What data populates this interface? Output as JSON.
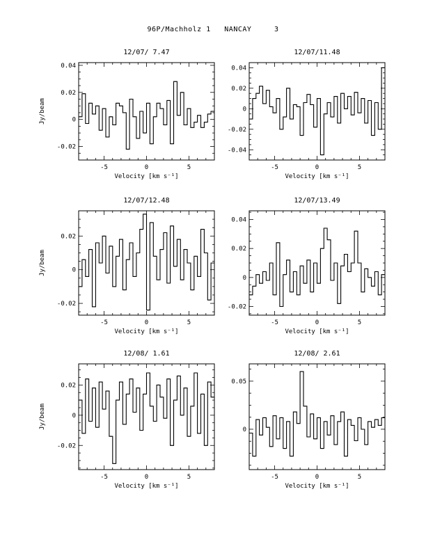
{
  "page": {
    "title": "96P/Machholz 1   NANCAY     3"
  },
  "chart_data": [
    {
      "type": "line",
      "style": "step",
      "title": "12/07/ 7.47",
      "xlabel": "Velocity [km s⁻¹]",
      "ylabel": "Jy/beam",
      "xlim": [
        -8,
        8
      ],
      "ylim": [
        -0.03,
        0.042
      ],
      "xticks": [
        -5,
        0,
        5
      ],
      "yticks": [
        -0.02,
        0,
        0.02,
        0.04
      ],
      "ytick_labels": [
        "-0.02",
        "0",
        "0.02",
        "0.04"
      ],
      "x": [
        -8.0,
        -7.6,
        -7.2,
        -6.8,
        -6.4,
        -6.0,
        -5.6,
        -5.2,
        -4.8,
        -4.4,
        -4.0,
        -3.6,
        -3.2,
        -2.8,
        -2.4,
        -2.0,
        -1.6,
        -1.2,
        -0.8,
        -0.4,
        0.0,
        0.4,
        0.8,
        1.2,
        1.6,
        2.0,
        2.4,
        2.8,
        3.2,
        3.6,
        4.0,
        4.4,
        4.8,
        5.2,
        5.6,
        6.0,
        6.4,
        6.8,
        7.2,
        7.6
      ],
      "y": [
        0.002,
        0.019,
        -0.003,
        0.012,
        0.004,
        0.01,
        -0.008,
        0.008,
        -0.013,
        0.002,
        -0.004,
        0.012,
        0.01,
        0.005,
        -0.022,
        0.015,
        0.002,
        -0.014,
        0.006,
        -0.01,
        0.012,
        -0.018,
        0.002,
        0.012,
        0.008,
        -0.004,
        0.014,
        -0.018,
        0.028,
        0.003,
        0.02,
        -0.004,
        0.008,
        -0.006,
        -0.002,
        0.003,
        -0.006,
        -0.002,
        0.004,
        0.006
      ]
    },
    {
      "type": "line",
      "style": "step",
      "title": "12/07/11.48",
      "xlabel": "Velocity [km s⁻¹]",
      "ylabel": "",
      "xlim": [
        -8,
        8
      ],
      "ylim": [
        -0.05,
        0.045
      ],
      "xticks": [
        -5,
        0,
        5
      ],
      "yticks": [
        -0.04,
        -0.02,
        0,
        0.02,
        0.04
      ],
      "ytick_labels": [
        "-0.04",
        "-0.02",
        "0",
        "0.02",
        "0.04"
      ],
      "x": [
        -8.0,
        -7.6,
        -7.2,
        -6.8,
        -6.4,
        -6.0,
        -5.6,
        -5.2,
        -4.8,
        -4.4,
        -4.0,
        -3.6,
        -3.2,
        -2.8,
        -2.4,
        -2.0,
        -1.6,
        -1.2,
        -0.8,
        -0.4,
        0.0,
        0.4,
        0.8,
        1.2,
        1.6,
        2.0,
        2.4,
        2.8,
        3.2,
        3.6,
        4.0,
        4.4,
        4.8,
        5.2,
        5.6,
        6.0,
        6.4,
        6.8,
        7.2,
        7.6
      ],
      "y": [
        -0.01,
        0.01,
        0.015,
        0.022,
        0.005,
        0.018,
        0.002,
        -0.004,
        0.01,
        -0.02,
        -0.008,
        0.02,
        -0.01,
        0.004,
        0.002,
        -0.026,
        0.006,
        0.014,
        0.004,
        -0.018,
        0.01,
        -0.045,
        -0.005,
        0.006,
        -0.008,
        0.012,
        -0.014,
        0.015,
        0.0,
        0.012,
        -0.006,
        0.016,
        -0.004,
        0.01,
        -0.014,
        0.008,
        -0.026,
        0.006,
        -0.02,
        0.04
      ]
    },
    {
      "type": "line",
      "style": "step",
      "title": "12/07/12.48",
      "xlabel": "Velocity [km s⁻¹]",
      "ylabel": "Jy/beam",
      "xlim": [
        -8,
        8
      ],
      "ylim": [
        -0.027,
        0.035
      ],
      "xticks": [
        -5,
        0,
        5
      ],
      "yticks": [
        -0.02,
        0,
        0.02
      ],
      "ytick_labels": [
        "-0.02",
        "0",
        "0.02"
      ],
      "x": [
        -8.0,
        -7.6,
        -7.2,
        -6.8,
        -6.4,
        -6.0,
        -5.6,
        -5.2,
        -4.8,
        -4.4,
        -4.0,
        -3.6,
        -3.2,
        -2.8,
        -2.4,
        -2.0,
        -1.6,
        -1.2,
        -0.8,
        -0.4,
        0.0,
        0.4,
        0.8,
        1.2,
        1.6,
        2.0,
        2.4,
        2.8,
        3.2,
        3.6,
        4.0,
        4.4,
        4.8,
        5.2,
        5.6,
        6.0,
        6.4,
        6.8,
        7.2,
        7.6
      ],
      "y": [
        -0.01,
        0.006,
        -0.004,
        0.012,
        -0.022,
        0.016,
        0.004,
        0.02,
        -0.002,
        0.014,
        -0.01,
        0.008,
        0.018,
        -0.012,
        0.006,
        0.016,
        -0.004,
        0.01,
        0.024,
        0.033,
        -0.024,
        0.028,
        0.008,
        -0.006,
        0.012,
        0.022,
        -0.008,
        0.026,
        0.002,
        0.018,
        -0.006,
        0.012,
        0.004,
        -0.012,
        0.008,
        -0.004,
        0.024,
        0.01,
        -0.018,
        0.004
      ]
    },
    {
      "type": "line",
      "style": "step",
      "title": "12/07/13.49",
      "xlabel": "Velocity [km s⁻¹]",
      "ylabel": "",
      "xlim": [
        -8,
        8
      ],
      "ylim": [
        -0.026,
        0.046
      ],
      "xticks": [
        -5,
        0,
        5
      ],
      "yticks": [
        -0.02,
        0,
        0.02,
        0.04
      ],
      "ytick_labels": [
        "-0.02",
        "0",
        "0.02",
        "0.04"
      ],
      "x": [
        -8.0,
        -7.6,
        -7.2,
        -6.8,
        -6.4,
        -6.0,
        -5.6,
        -5.2,
        -4.8,
        -4.4,
        -4.0,
        -3.6,
        -3.2,
        -2.8,
        -2.4,
        -2.0,
        -1.6,
        -1.2,
        -0.8,
        -0.4,
        0.0,
        0.4,
        0.8,
        1.2,
        1.6,
        2.0,
        2.4,
        2.8,
        3.2,
        3.6,
        4.0,
        4.4,
        4.8,
        5.2,
        5.6,
        6.0,
        6.4,
        6.8,
        7.2,
        7.6
      ],
      "y": [
        -0.012,
        -0.006,
        0.002,
        -0.004,
        0.004,
        -0.002,
        0.01,
        -0.012,
        0.024,
        -0.02,
        0.002,
        0.012,
        -0.01,
        0.004,
        -0.012,
        0.008,
        -0.004,
        0.012,
        -0.01,
        0.01,
        -0.004,
        0.02,
        0.034,
        0.026,
        -0.002,
        0.01,
        -0.018,
        0.008,
        0.016,
        0.004,
        0.01,
        0.032,
        0.01,
        -0.01,
        0.006,
        0.0,
        -0.006,
        0.004,
        -0.012,
        0.002
      ]
    },
    {
      "type": "line",
      "style": "step",
      "title": "12/08/ 1.61",
      "xlabel": "Velocity [km s⁻¹]",
      "ylabel": "Jy/beam",
      "xlim": [
        -8,
        8
      ],
      "ylim": [
        -0.036,
        0.034
      ],
      "xticks": [
        -5,
        0,
        5
      ],
      "yticks": [
        -0.02,
        0,
        0.02
      ],
      "ytick_labels": [
        "-0.02",
        "0",
        "0.02"
      ],
      "x": [
        -8.0,
        -7.6,
        -7.2,
        -6.8,
        -6.4,
        -6.0,
        -5.6,
        -5.2,
        -4.8,
        -4.4,
        -4.0,
        -3.6,
        -3.2,
        -2.8,
        -2.4,
        -2.0,
        -1.6,
        -1.2,
        -0.8,
        -0.4,
        0.0,
        0.4,
        0.8,
        1.2,
        1.6,
        2.0,
        2.4,
        2.8,
        3.2,
        3.6,
        4.0,
        4.4,
        4.8,
        5.2,
        5.6,
        6.0,
        6.4,
        6.8,
        7.2,
        7.6
      ],
      "y": [
        0.01,
        -0.012,
        0.024,
        -0.004,
        0.018,
        -0.008,
        0.022,
        0.004,
        0.016,
        -0.014,
        -0.032,
        0.01,
        0.022,
        -0.006,
        0.014,
        0.024,
        0.002,
        0.018,
        -0.01,
        0.014,
        0.028,
        0.006,
        -0.004,
        0.02,
        0.012,
        -0.002,
        0.024,
        -0.02,
        0.01,
        0.026,
        0.0,
        0.018,
        -0.014,
        0.006,
        0.028,
        -0.012,
        0.014,
        -0.02,
        0.022,
        0.012
      ]
    },
    {
      "type": "line",
      "style": "step",
      "title": "12/08/ 2.61",
      "xlabel": "Velocity [km s⁻¹]",
      "ylabel": "",
      "xlim": [
        -8,
        8
      ],
      "ylim": [
        -0.042,
        0.068
      ],
      "xticks": [
        -5,
        0,
        5
      ],
      "yticks": [
        0,
        0.05
      ],
      "ytick_labels": [
        "0",
        "0.05"
      ],
      "x": [
        -8.0,
        -7.6,
        -7.2,
        -6.8,
        -6.4,
        -6.0,
        -5.6,
        -5.2,
        -4.8,
        -4.4,
        -4.0,
        -3.6,
        -3.2,
        -2.8,
        -2.4,
        -2.0,
        -1.6,
        -1.2,
        -0.8,
        -0.4,
        0.0,
        0.4,
        0.8,
        1.2,
        1.6,
        2.0,
        2.4,
        2.8,
        3.2,
        3.6,
        4.0,
        4.4,
        4.8,
        5.2,
        5.6,
        6.0,
        6.4,
        6.8,
        7.2,
        7.6
      ],
      "y": [
        -0.004,
        -0.028,
        0.01,
        -0.006,
        0.012,
        0.002,
        -0.018,
        0.014,
        -0.01,
        0.012,
        -0.02,
        0.008,
        -0.028,
        0.018,
        0.006,
        0.06,
        0.024,
        -0.008,
        0.016,
        -0.01,
        0.012,
        -0.02,
        0.008,
        -0.006,
        0.014,
        -0.016,
        0.008,
        0.018,
        -0.028,
        0.01,
        0.004,
        -0.012,
        0.012,
        0.0,
        -0.016,
        0.008,
        0.002,
        0.01,
        0.004,
        0.012
      ]
    }
  ]
}
